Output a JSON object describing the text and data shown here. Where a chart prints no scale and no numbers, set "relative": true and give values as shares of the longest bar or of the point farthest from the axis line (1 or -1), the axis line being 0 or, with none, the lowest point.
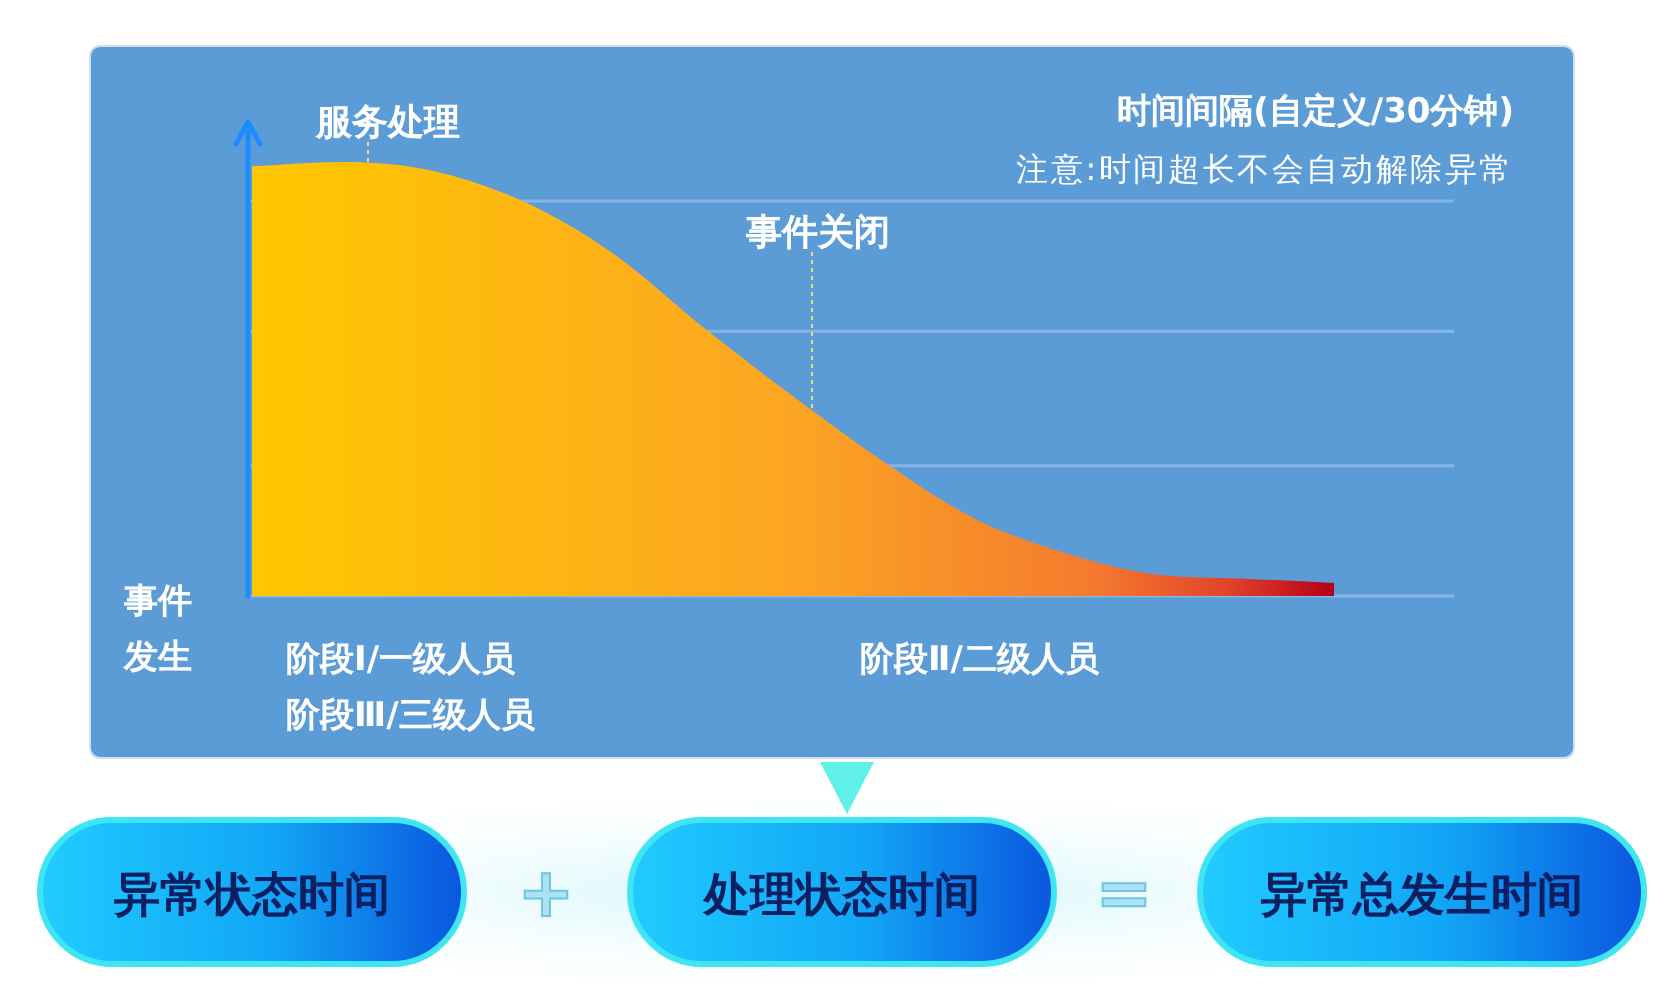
{
  "chart_data": [
    {
      "type": "area",
      "title": "时间间隔(自定义/30分钟)",
      "subtitle": "注意:时间超长不会自动解除异常",
      "categories": [
        null,
        null,
        null,
        null,
        null,
        null,
        null,
        null,
        null,
        null,
        null,
        null,
        null
      ],
      "series": [
        {
          "color": "#fca524",
          "values": [
            0.99,
            1,
            0.98,
            0.91,
            0.79,
            0.62,
            0.46,
            0.31,
            0.18,
            0.1,
            0.05,
            0.04,
            0.03
          ]
        }
      ],
      "relative": true,
      "ref_lines": [
        {
          "axis": "y",
          "value": 0.3,
          "color": "#86b6e4"
        },
        {
          "axis": "y",
          "value": 0.61,
          "color": "#86b6e4"
        },
        {
          "axis": "y",
          "value": 0.91,
          "color": "#86b6e4"
        }
      ],
      "annotations": [
        "服务处理",
        "事件关闭",
        "事件发生",
        "阶段Ⅰ/一级人员",
        "阶段Ⅱ/二级人员",
        "阶段Ⅲ/三级人员"
      ]
    },
    {
      "type": "other",
      "annotations": [
        "异常状态时间",
        "+",
        "处理状态时间",
        "=",
        "异常总发生时间"
      ]
    }
  ]
}
